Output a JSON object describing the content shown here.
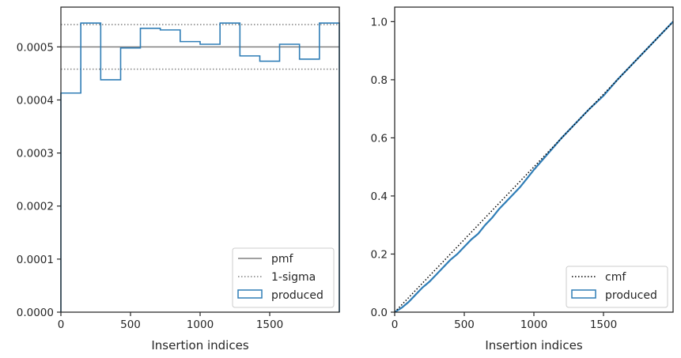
{
  "colors": {
    "produced": "#2f7db6",
    "pmf": "#808080",
    "sigma": "#808080",
    "cmf": "#000000",
    "axes": "#262626"
  },
  "chart_data": [
    {
      "type": "step",
      "xlabel": "Insertion indices",
      "ylabel": "",
      "xlim": [
        0,
        2000
      ],
      "ylim": [
        0,
        0.000575
      ],
      "xticks": [
        0,
        500,
        1000,
        1500
      ],
      "xtick_labels": [
        "0",
        "500",
        "1000",
        "1500"
      ],
      "yticks": [
        0,
        0.0001,
        0.0002,
        0.0003,
        0.0004,
        0.0005
      ],
      "ytick_labels": [
        "0.0000",
        "0.0001",
        "0.0002",
        "0.0003",
        "0.0004",
        "0.0005"
      ],
      "grid": false,
      "legend_position": "lower right",
      "pmf": 0.0005,
      "sigma_band": [
        0.000458,
        0.000542
      ],
      "bin_edges": [
        0,
        143,
        286,
        429,
        571,
        714,
        857,
        1000,
        1143,
        1286,
        1429,
        1571,
        1714,
        1857,
        2000
      ],
      "bin_values": [
        0.000413,
        0.000545,
        0.000438,
        0.000498,
        0.000535,
        0.000532,
        0.00051,
        0.000505,
        0.000545,
        0.000483,
        0.000473,
        0.000505,
        0.000477,
        0.000545
      ],
      "series": [
        {
          "name": "pmf",
          "style": "solid"
        },
        {
          "name": "1-sigma",
          "style": "dotted"
        },
        {
          "name": "produced",
          "style": "step"
        }
      ]
    },
    {
      "type": "line",
      "xlabel": "Insertion indices",
      "ylabel": "",
      "xlim": [
        0,
        2000
      ],
      "ylim": [
        0,
        1.05
      ],
      "xticks": [
        0,
        500,
        1000,
        1500
      ],
      "xtick_labels": [
        "0",
        "500",
        "1000",
        "1500"
      ],
      "yticks": [
        0,
        0.2,
        0.4,
        0.6,
        0.8,
        1.0
      ],
      "ytick_labels": [
        "0.0",
        "0.2",
        "0.4",
        "0.6",
        "0.8",
        "1.0"
      ],
      "grid": false,
      "legend_position": "lower right",
      "cmf": {
        "x": [
          0,
          2000
        ],
        "y": [
          0,
          1.0
        ]
      },
      "produced": {
        "x": [
          0,
          50,
          100,
          150,
          200,
          250,
          300,
          350,
          400,
          450,
          500,
          550,
          600,
          650,
          700,
          750,
          800,
          850,
          900,
          950,
          1000,
          1100,
          1200,
          1300,
          1400,
          1500,
          1600,
          1700,
          1800,
          1900,
          2000
        ],
        "y": [
          0,
          0.015,
          0.035,
          0.06,
          0.085,
          0.105,
          0.13,
          0.155,
          0.18,
          0.2,
          0.225,
          0.25,
          0.27,
          0.3,
          0.325,
          0.355,
          0.38,
          0.405,
          0.43,
          0.46,
          0.49,
          0.545,
          0.6,
          0.65,
          0.7,
          0.745,
          0.8,
          0.85,
          0.9,
          0.95,
          1.0
        ]
      },
      "series": [
        {
          "name": "cmf",
          "style": "dotted"
        },
        {
          "name": "produced",
          "style": "line"
        }
      ]
    }
  ]
}
